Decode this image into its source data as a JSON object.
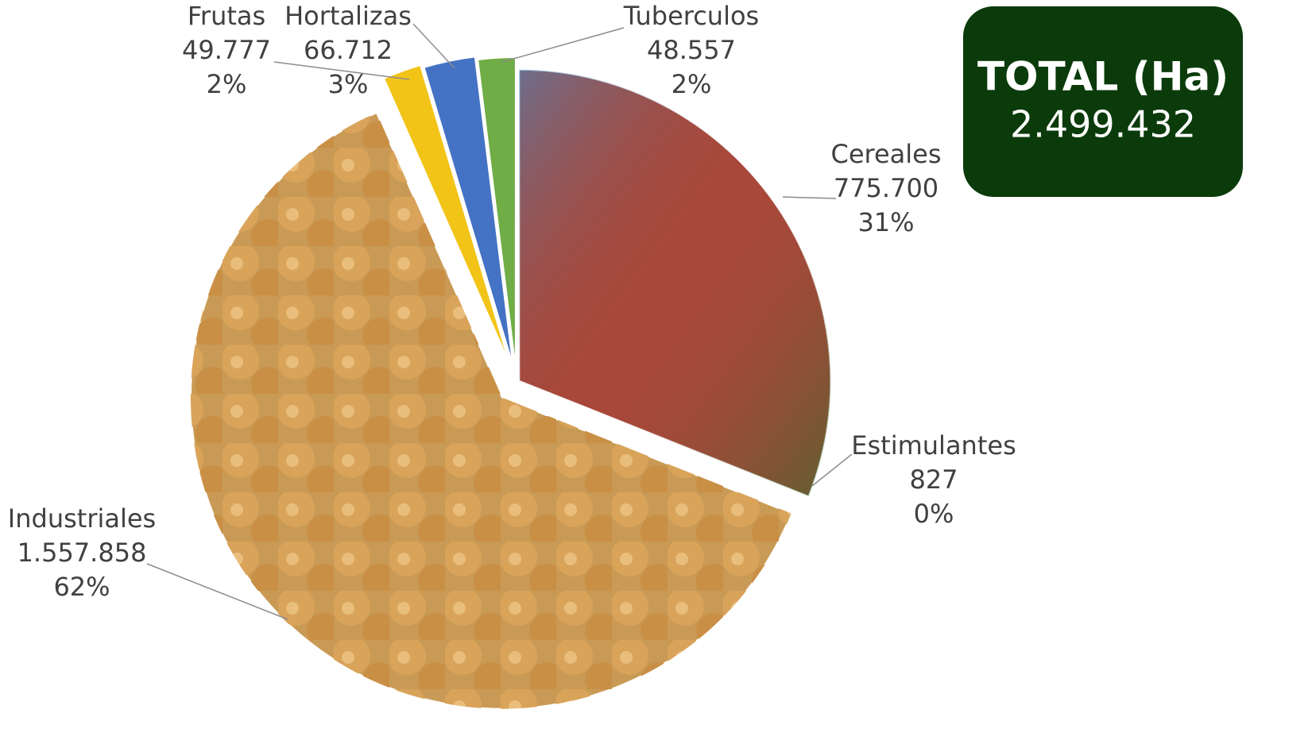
{
  "chart_data": {
    "type": "pie",
    "categories": [
      "Cereales",
      "Estimulantes",
      "Industriales",
      "Frutas",
      "Hortalizas",
      "Tuberculos"
    ],
    "values": [
      775700,
      827,
      1557858,
      49777,
      66712,
      48557
    ],
    "value_labels": [
      "775.700",
      "827",
      "1.557.858",
      "49.777",
      "66.712",
      "48.557"
    ],
    "percents": [
      31,
      0,
      62,
      2,
      3,
      2
    ],
    "percent_labels": [
      "31%",
      "0%",
      "62%",
      "2%",
      "3%",
      "2%"
    ],
    "colors": [
      "#a8483a",
      "#6b8e3a",
      "#c99a55",
      "#f2c418",
      "#4472c4",
      "#70ad47"
    ],
    "total_title": "TOTAL (Ha)",
    "total_value": 2499432,
    "total_value_label": "2.499.432"
  }
}
